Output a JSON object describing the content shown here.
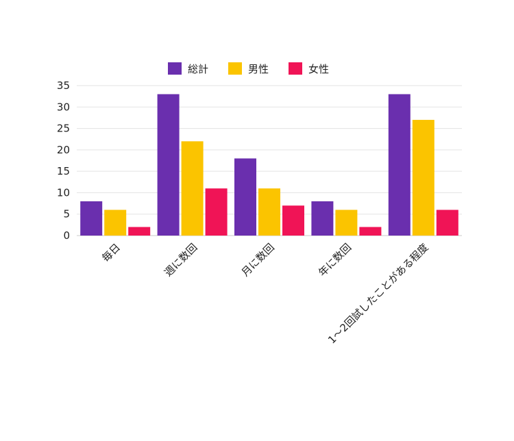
{
  "chart_data": {
    "type": "bar",
    "categories": [
      "毎日",
      "週に数回",
      "月に数回",
      "年に数回",
      "1～2回試したことがある程度"
    ],
    "series": [
      {
        "name": "総計",
        "values": [
          8,
          33,
          18,
          8,
          33
        ],
        "color": "#6a2fae"
      },
      {
        "name": "男性",
        "values": [
          6,
          22,
          11,
          6,
          27
        ],
        "color": "#fbc400"
      },
      {
        "name": "女性",
        "values": [
          2,
          11,
          7,
          2,
          6
        ],
        "color": "#f01456"
      }
    ],
    "ylim": [
      0,
      35
    ],
    "yticks": [
      0,
      5,
      10,
      15,
      20,
      25,
      30,
      35
    ],
    "grid": true,
    "legend_position": "top-center",
    "title": "",
    "xlabel": "",
    "ylabel": ""
  }
}
